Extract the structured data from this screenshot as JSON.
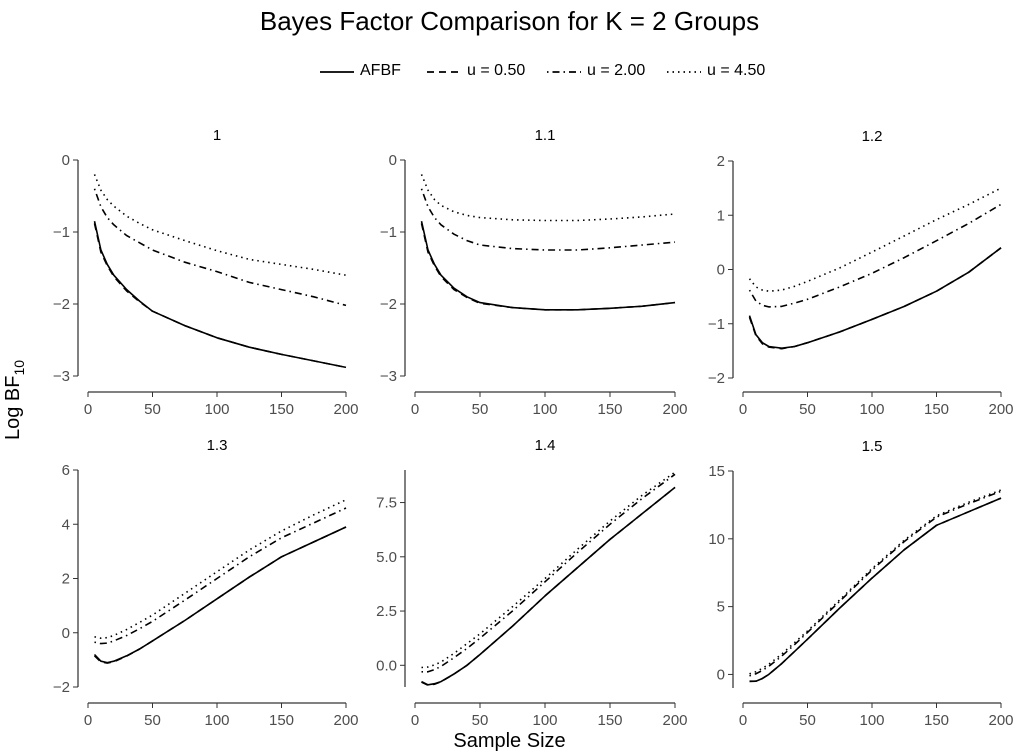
{
  "chart_data": {
    "type": "line",
    "title": "Bayes Factor Comparison for K = 2 Groups",
    "xlabel": "Sample Size",
    "ylabel_main": "Log BF",
    "ylabel_sub": "10",
    "legend_position": "top",
    "grid": false,
    "legend": [
      {
        "name": "AFBF",
        "linestyle": "solid"
      },
      {
        "name": "u = 0.50",
        "linestyle": "dashed"
      },
      {
        "name": "u = 2.00",
        "linestyle": "dashdot"
      },
      {
        "name": "u = 4.50",
        "linestyle": "dotted"
      }
    ],
    "x": [
      5,
      10,
      15,
      20,
      30,
      40,
      50,
      75,
      100,
      125,
      150,
      175,
      200
    ],
    "xlim": [
      0,
      200
    ],
    "xticks": [
      0,
      50,
      100,
      150,
      200
    ],
    "panels": [
      {
        "title": "1",
        "ylim": [
          -3,
          0
        ],
        "yticks": [
          0,
          -1,
          -2,
          -3
        ],
        "ytick_labels": [
          "0",
          "−1",
          "−2",
          "−3"
        ],
        "series": [
          {
            "name": "AFBF",
            "values": [
              -0.85,
              -1.25,
              -1.45,
              -1.6,
              -1.8,
              -1.96,
              -2.1,
              -2.3,
              -2.47,
              -2.6,
              -2.7,
              -2.79,
              -2.88
            ]
          },
          {
            "name": "u = 0.50",
            "values": [
              -0.88,
              -1.28,
              -1.47,
              -1.62,
              -1.82,
              -1.97,
              -2.1,
              -2.3,
              -2.47,
              -2.6,
              -2.7,
              -2.79,
              -2.88
            ]
          },
          {
            "name": "u = 2.00",
            "values": [
              -0.4,
              -0.65,
              -0.8,
              -0.9,
              -1.05,
              -1.15,
              -1.25,
              -1.42,
              -1.55,
              -1.7,
              -1.8,
              -1.9,
              -2.02
            ]
          },
          {
            "name": "u = 4.50",
            "values": [
              -0.2,
              -0.42,
              -0.55,
              -0.64,
              -0.78,
              -0.88,
              -0.97,
              -1.12,
              -1.26,
              -1.38,
              -1.45,
              -1.52,
              -1.6
            ]
          }
        ]
      },
      {
        "title": "1.1",
        "ylim": [
          -3,
          0
        ],
        "yticks": [
          0,
          -1,
          -2,
          -3
        ],
        "ytick_labels": [
          "0",
          "−1",
          "−2",
          "−3"
        ],
        "series": [
          {
            "name": "AFBF",
            "values": [
              -0.85,
              -1.25,
              -1.45,
              -1.6,
              -1.78,
              -1.9,
              -1.98,
              -2.05,
              -2.08,
              -2.08,
              -2.06,
              -2.03,
              -1.98
            ]
          },
          {
            "name": "u = 0.50",
            "values": [
              -0.88,
              -1.28,
              -1.47,
              -1.62,
              -1.8,
              -1.91,
              -1.99,
              -2.05,
              -2.08,
              -2.08,
              -2.06,
              -2.03,
              -1.98
            ]
          },
          {
            "name": "u = 2.00",
            "values": [
              -0.4,
              -0.65,
              -0.8,
              -0.9,
              -1.03,
              -1.12,
              -1.18,
              -1.23,
              -1.25,
              -1.25,
              -1.22,
              -1.18,
              -1.14
            ]
          },
          {
            "name": "u = 4.50",
            "values": [
              -0.2,
              -0.42,
              -0.55,
              -0.63,
              -0.72,
              -0.77,
              -0.8,
              -0.83,
              -0.84,
              -0.84,
              -0.82,
              -0.79,
              -0.75
            ]
          }
        ]
      },
      {
        "title": "1.2",
        "ylim": [
          -2,
          2
        ],
        "yticks": [
          2,
          1,
          0,
          -1,
          -2
        ],
        "ytick_labels": [
          "2",
          "1",
          "0",
          "−1",
          "−2"
        ],
        "series": [
          {
            "name": "AFBF",
            "values": [
              -0.85,
              -1.2,
              -1.35,
              -1.42,
              -1.45,
              -1.42,
              -1.35,
              -1.15,
              -0.92,
              -0.68,
              -0.4,
              -0.05,
              0.4
            ]
          },
          {
            "name": "u = 0.50",
            "values": [
              -0.88,
              -1.22,
              -1.37,
              -1.43,
              -1.46,
              -1.42,
              -1.35,
              -1.15,
              -0.92,
              -0.68,
              -0.4,
              -0.05,
              0.4
            ]
          },
          {
            "name": "u = 2.00",
            "values": [
              -0.38,
              -0.58,
              -0.66,
              -0.69,
              -0.68,
              -0.62,
              -0.55,
              -0.32,
              -0.07,
              0.22,
              0.53,
              0.85,
              1.2
            ]
          },
          {
            "name": "u = 4.50",
            "values": [
              -0.17,
              -0.32,
              -0.38,
              -0.4,
              -0.38,
              -0.31,
              -0.22,
              0.03,
              0.32,
              0.62,
              0.92,
              1.2,
              1.5
            ]
          }
        ]
      },
      {
        "title": "1.3",
        "ylim": [
          -2,
          6
        ],
        "yticks": [
          6,
          4,
          2,
          0,
          -2
        ],
        "ytick_labels": [
          "6",
          "4",
          "2",
          "0",
          "−2"
        ],
        "series": [
          {
            "name": "AFBF",
            "values": [
              -0.8,
              -1.05,
              -1.1,
              -1.05,
              -0.85,
              -0.6,
              -0.3,
              0.45,
              1.25,
              2.05,
              2.8,
              3.35,
              3.9
            ]
          },
          {
            "name": "u = 0.50",
            "values": [
              -0.85,
              -1.08,
              -1.12,
              -1.07,
              -0.86,
              -0.6,
              -0.3,
              0.45,
              1.25,
              2.05,
              2.8,
              3.35,
              3.9
            ]
          },
          {
            "name": "u = 2.00",
            "values": [
              -0.35,
              -0.4,
              -0.38,
              -0.3,
              -0.1,
              0.15,
              0.42,
              1.2,
              2.0,
              2.8,
              3.5,
              4.05,
              4.6
            ]
          },
          {
            "name": "u = 4.50",
            "values": [
              -0.15,
              -0.2,
              -0.18,
              -0.1,
              0.12,
              0.38,
              0.65,
              1.45,
              2.25,
              3.05,
              3.75,
              4.35,
              4.9
            ]
          }
        ]
      },
      {
        "title": "1.4",
        "ylim": [
          -1,
          9
        ],
        "yticks": [
          7.5,
          5.0,
          2.5,
          0.0
        ],
        "ytick_labels": [
          "7.5",
          "5.0",
          "2.5",
          "0.0"
        ],
        "series": [
          {
            "name": "AFBF",
            "values": [
              -0.75,
              -0.9,
              -0.85,
              -0.75,
              -0.4,
              0.0,
              0.5,
              1.8,
              3.2,
              4.5,
              5.8,
              7.0,
              8.2
            ]
          },
          {
            "name": "u = 0.50",
            "values": [
              -0.78,
              -0.92,
              -0.87,
              -0.76,
              -0.4,
              0.0,
              0.5,
              1.8,
              3.2,
              4.5,
              5.8,
              7.0,
              8.2
            ]
          },
          {
            "name": "u = 2.00",
            "values": [
              -0.3,
              -0.3,
              -0.2,
              -0.05,
              0.35,
              0.78,
              1.25,
              2.5,
              3.85,
              5.2,
              6.5,
              7.7,
              8.8
            ]
          },
          {
            "name": "u = 4.50",
            "values": [
              -0.1,
              -0.08,
              0.02,
              0.15,
              0.55,
              1.0,
              1.45,
              2.7,
              4.0,
              5.35,
              6.65,
              7.85,
              8.9
            ]
          }
        ]
      },
      {
        "title": "1.5",
        "ylim": [
          -1,
          15
        ],
        "yticks": [
          15,
          10,
          5,
          0
        ],
        "ytick_labels": [
          "15",
          "10",
          "5",
          "0"
        ],
        "series": [
          {
            "name": "AFBF",
            "values": [
              -0.5,
              -0.5,
              -0.3,
              0.0,
              0.8,
              1.7,
              2.6,
              4.9,
              7.1,
              9.2,
              11.0,
              12.0,
              13.0
            ]
          },
          {
            "name": "u = 0.50",
            "values": [
              -0.52,
              -0.5,
              -0.3,
              0.0,
              0.8,
              1.7,
              2.6,
              4.9,
              7.1,
              9.2,
              11.0,
              12.0,
              13.0
            ]
          },
          {
            "name": "u = 2.00",
            "values": [
              -0.1,
              0.05,
              0.3,
              0.6,
              1.35,
              2.2,
              3.1,
              5.4,
              7.7,
              9.8,
              11.6,
              12.6,
              13.5
            ]
          },
          {
            "name": "u = 4.50",
            "values": [
              0.05,
              0.2,
              0.45,
              0.75,
              1.5,
              2.35,
              3.2,
              5.5,
              7.8,
              9.9,
              11.7,
              12.7,
              13.6
            ]
          }
        ]
      }
    ]
  }
}
